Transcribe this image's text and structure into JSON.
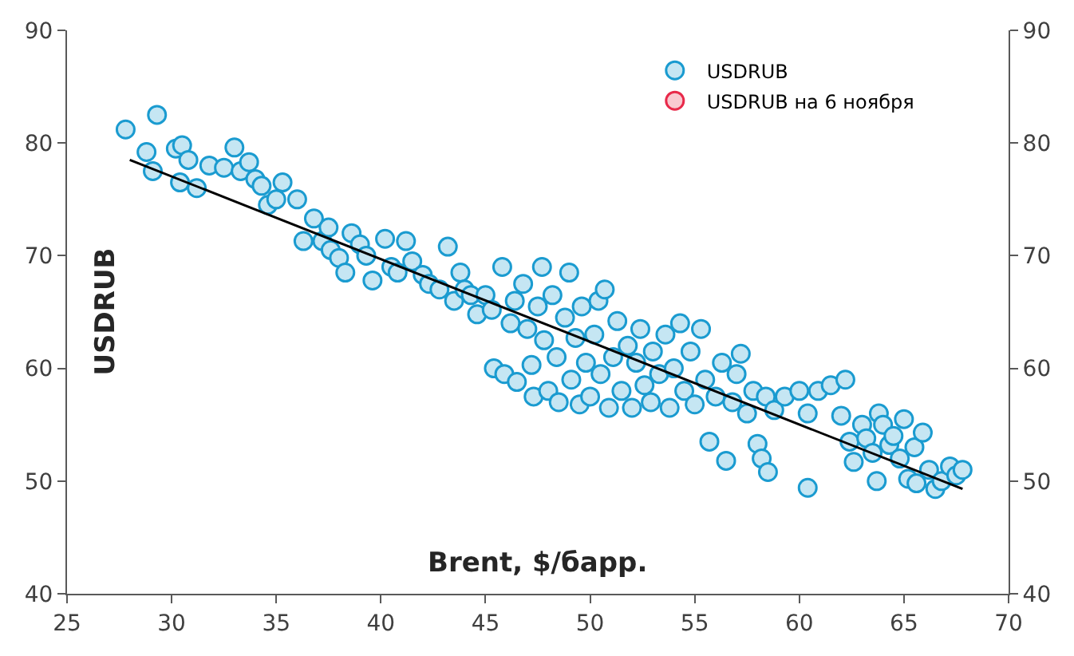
{
  "chart_data": {
    "type": "scatter",
    "xlabel": "Brent, $/барр.",
    "ylabel": "USDRUB",
    "xlim": [
      25,
      70
    ],
    "xticks": [
      25,
      30,
      35,
      40,
      45,
      50,
      55,
      60,
      65,
      70
    ],
    "ylim": [
      40,
      90
    ],
    "yticks": [
      40,
      50,
      60,
      70,
      80,
      90
    ],
    "y2lim": [
      40,
      90
    ],
    "y2ticks": [
      40,
      50,
      60,
      70,
      80,
      90
    ],
    "legend": "top right",
    "marker": "circle",
    "series": [
      {
        "name": "USDRUB",
        "color": "#1a9bd0",
        "x": [
          27.8,
          29.3,
          28.8,
          29.1,
          30.2,
          30.5,
          30.8,
          30.4,
          31.2,
          31.8,
          32.5,
          33,
          33.3,
          33.7,
          34,
          34.3,
          34.6,
          35,
          35.3,
          36,
          36.3,
          36.8,
          37.2,
          37.5,
          37.6,
          38,
          38.3,
          38.6,
          39,
          39.3,
          39.6,
          40.2,
          40.5,
          40.8,
          41.2,
          41.5,
          42,
          42.3,
          42.8,
          43.2,
          43.5,
          43.8,
          44,
          44.3,
          44.6,
          45,
          45.3,
          45.4,
          45.8,
          45.9,
          46.2,
          46.4,
          46.5,
          46.8,
          47,
          47.2,
          47.3,
          47.5,
          47.7,
          47.8,
          48,
          48.2,
          48.4,
          48.5,
          48.8,
          49,
          49.1,
          49.3,
          49.5,
          49.6,
          49.8,
          50,
          50.2,
          50.4,
          50.5,
          50.7,
          50.9,
          51.1,
          51.3,
          51.5,
          51.8,
          52,
          52.2,
          52.4,
          52.6,
          52.9,
          53,
          53.3,
          53.6,
          53.8,
          54,
          54.3,
          54.5,
          54.8,
          55,
          55.3,
          55.5,
          55.7,
          56,
          56.3,
          56.5,
          56.8,
          57,
          57.2,
          57.5,
          57.8,
          58,
          58.2,
          58.5,
          58.4,
          58.8,
          59.3,
          60,
          60.4,
          60.4,
          60.9,
          61.5,
          62.2,
          62,
          62.4,
          62.6,
          63,
          63.2,
          63.5,
          63.7,
          63.8,
          64,
          64.3,
          64.5,
          64.8,
          65,
          65.2,
          65.5,
          65.6,
          65.9,
          66.2,
          66.5,
          66.8,
          67.2,
          67.5,
          67.8
        ],
        "values": [
          81.2,
          82.5,
          79.2,
          77.5,
          79.5,
          79.8,
          78.5,
          76.5,
          76,
          78,
          77.8,
          79.6,
          77.5,
          78.3,
          76.8,
          76.2,
          74.5,
          75,
          76.5,
          75,
          71.3,
          73.3,
          71.3,
          72.5,
          70.5,
          69.8,
          68.5,
          72,
          71,
          70,
          67.8,
          71.5,
          69,
          68.5,
          71.3,
          69.5,
          68.3,
          67.5,
          67,
          70.8,
          66,
          68.5,
          67,
          66.5,
          64.8,
          66.5,
          65.2,
          60,
          69,
          59.5,
          64,
          66,
          58.8,
          67.5,
          63.5,
          60.3,
          57.5,
          65.5,
          69,
          62.5,
          58,
          66.5,
          61,
          57,
          64.5,
          68.5,
          59,
          62.7,
          56.8,
          65.5,
          60.5,
          57.5,
          63,
          66,
          59.5,
          67,
          56.5,
          61,
          64.2,
          58,
          62,
          56.5,
          60.5,
          63.5,
          58.5,
          57,
          61.5,
          59.5,
          63,
          56.5,
          60,
          64,
          58,
          61.5,
          56.8,
          63.5,
          59,
          53.5,
          57.5,
          60.5,
          51.8,
          57,
          59.5,
          61.3,
          56,
          58,
          53.3,
          52,
          50.8,
          57.5,
          56.3,
          57.5,
          58,
          56,
          49.4,
          58,
          58.5,
          59,
          55.8,
          53.5,
          51.7,
          55,
          53.8,
          52.5,
          50,
          56,
          55,
          53.2,
          54,
          52,
          55.5,
          50.2,
          53,
          49.8,
          54.3,
          51,
          49.3,
          50,
          51.3,
          50.5,
          51
        ]
      },
      {
        "name": "USDRUB на 6 ноября",
        "color": "#e8294a"
      },
      {
        "type": "line",
        "color": "#000000",
        "x": [
          28,
          67.8
        ],
        "values": [
          78.5,
          49.3
        ],
        "marker": "none"
      }
    ]
  }
}
